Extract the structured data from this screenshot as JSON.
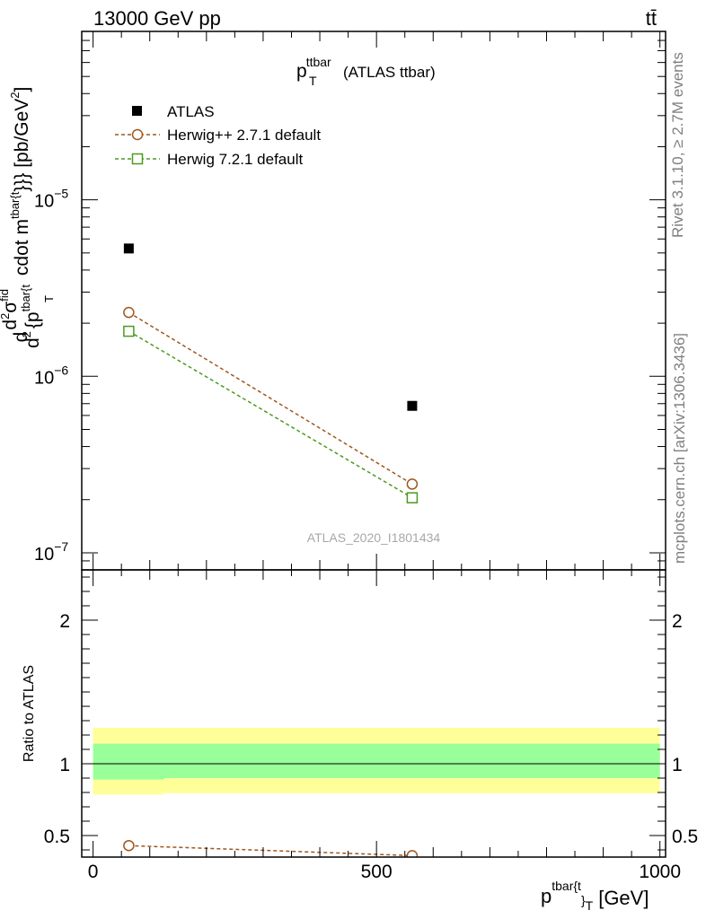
{
  "header": {
    "energy_label": "13000 GeV pp",
    "process_label": "tt̄"
  },
  "side_labels": {
    "rivet": "Rivet 3.1.10, ≥ 2.7M events",
    "mcplots": "mcplots.cern.ch [arXiv:1306.3436]"
  },
  "chart_data": [
    {
      "type": "scatter",
      "title": "p",
      "title_sup": "ttbar",
      "title_sub": "T",
      "title_suffix": "(ATLAS ttbar)",
      "watermark": "ATLAS_2020_I1801434",
      "yscale": "log",
      "ylim": [
        8e-08,
        9e-05
      ],
      "xlim": [
        -20,
        1010
      ],
      "ylabel": {
        "d1": "d",
        "d2": "d",
        "exp2": "2",
        "sigma": "σ",
        "sigma_sup": "fid",
        "den": "d",
        "den_exp": "2",
        "den_text": "{p",
        "den_sup": "tbar{t",
        "den_sub": "T",
        "rest": "cdot m",
        "rest_sup": "tbar{t",
        "tail": "}}} [pb/GeV",
        "tail_sup": "2",
        "close": "]"
      },
      "y_ticks": [
        {
          "value": 1e-07,
          "base": "10",
          "exp": "−7"
        },
        {
          "value": 1e-06,
          "base": "10",
          "exp": "−6"
        },
        {
          "value": 1e-05,
          "base": "10",
          "exp": "−5"
        }
      ],
      "legend": [
        {
          "name": "ATLAS",
          "marker": "filled-square",
          "color": "#000000"
        },
        {
          "name": "Herwig++ 2.7.1 default",
          "marker": "open-circle",
          "color": "#a0571d"
        },
        {
          "name": "Herwig 7.2.1 default",
          "marker": "open-square",
          "color": "#4b9a1f"
        }
      ],
      "series": [
        {
          "name": "ATLAS",
          "x": [
            63,
            563
          ],
          "y": [
            5.3e-06,
            6.8e-07
          ],
          "color": "#000000"
        },
        {
          "name": "Herwig++ 2.7.1 default",
          "x": [
            63,
            563
          ],
          "y": [
            2.3e-06,
            2.45e-07
          ],
          "color": "#a0571d"
        },
        {
          "name": "Herwig 7.2.1 default",
          "x": [
            63,
            563
          ],
          "y": [
            1.8e-06,
            2.05e-07
          ],
          "color": "#4b9a1f"
        }
      ]
    },
    {
      "type": "line",
      "ylabel": "Ratio to ATLAS",
      "xlabel": "p",
      "xlabel_sup": "tbar{t",
      "xlabel_sub": "}",
      "xlabel_sub2": "T",
      "xlabel_unit": "[GeV]",
      "xlim": [
        -20,
        1010
      ],
      "ylim": [
        0.35,
        2.35
      ],
      "x_ticks": [
        {
          "value": 0,
          "label": "0"
        },
        {
          "value": 500,
          "label": "500"
        },
        {
          "value": 1000,
          "label": "1000"
        }
      ],
      "y_ticks": [
        {
          "value": 0.5,
          "label": "0.5"
        },
        {
          "value": 1,
          "label": "1"
        },
        {
          "value": 2,
          "label": "2"
        }
      ],
      "bands": [
        {
          "name": "total-uncertainty",
          "color": "#ffff99",
          "bins": [
            {
              "x0": 0,
              "x1": 125,
              "lo": 0.785,
              "hi": 1.25
            },
            {
              "x0": 125,
              "x1": 1000,
              "lo": 0.795,
              "hi": 1.25
            }
          ]
        },
        {
          "name": "stat-uncertainty",
          "color": "#99ff99",
          "bins": [
            {
              "x0": 0,
              "x1": 125,
              "lo": 0.89,
              "hi": 1.14
            },
            {
              "x0": 125,
              "x1": 1000,
              "lo": 0.9,
              "hi": 1.14
            }
          ]
        }
      ],
      "series": [
        {
          "name": "Herwig++ 2.7.1 default",
          "x": [
            63,
            563
          ],
          "y": [
            0.43,
            0.36
          ],
          "color": "#a0571d"
        }
      ]
    }
  ]
}
